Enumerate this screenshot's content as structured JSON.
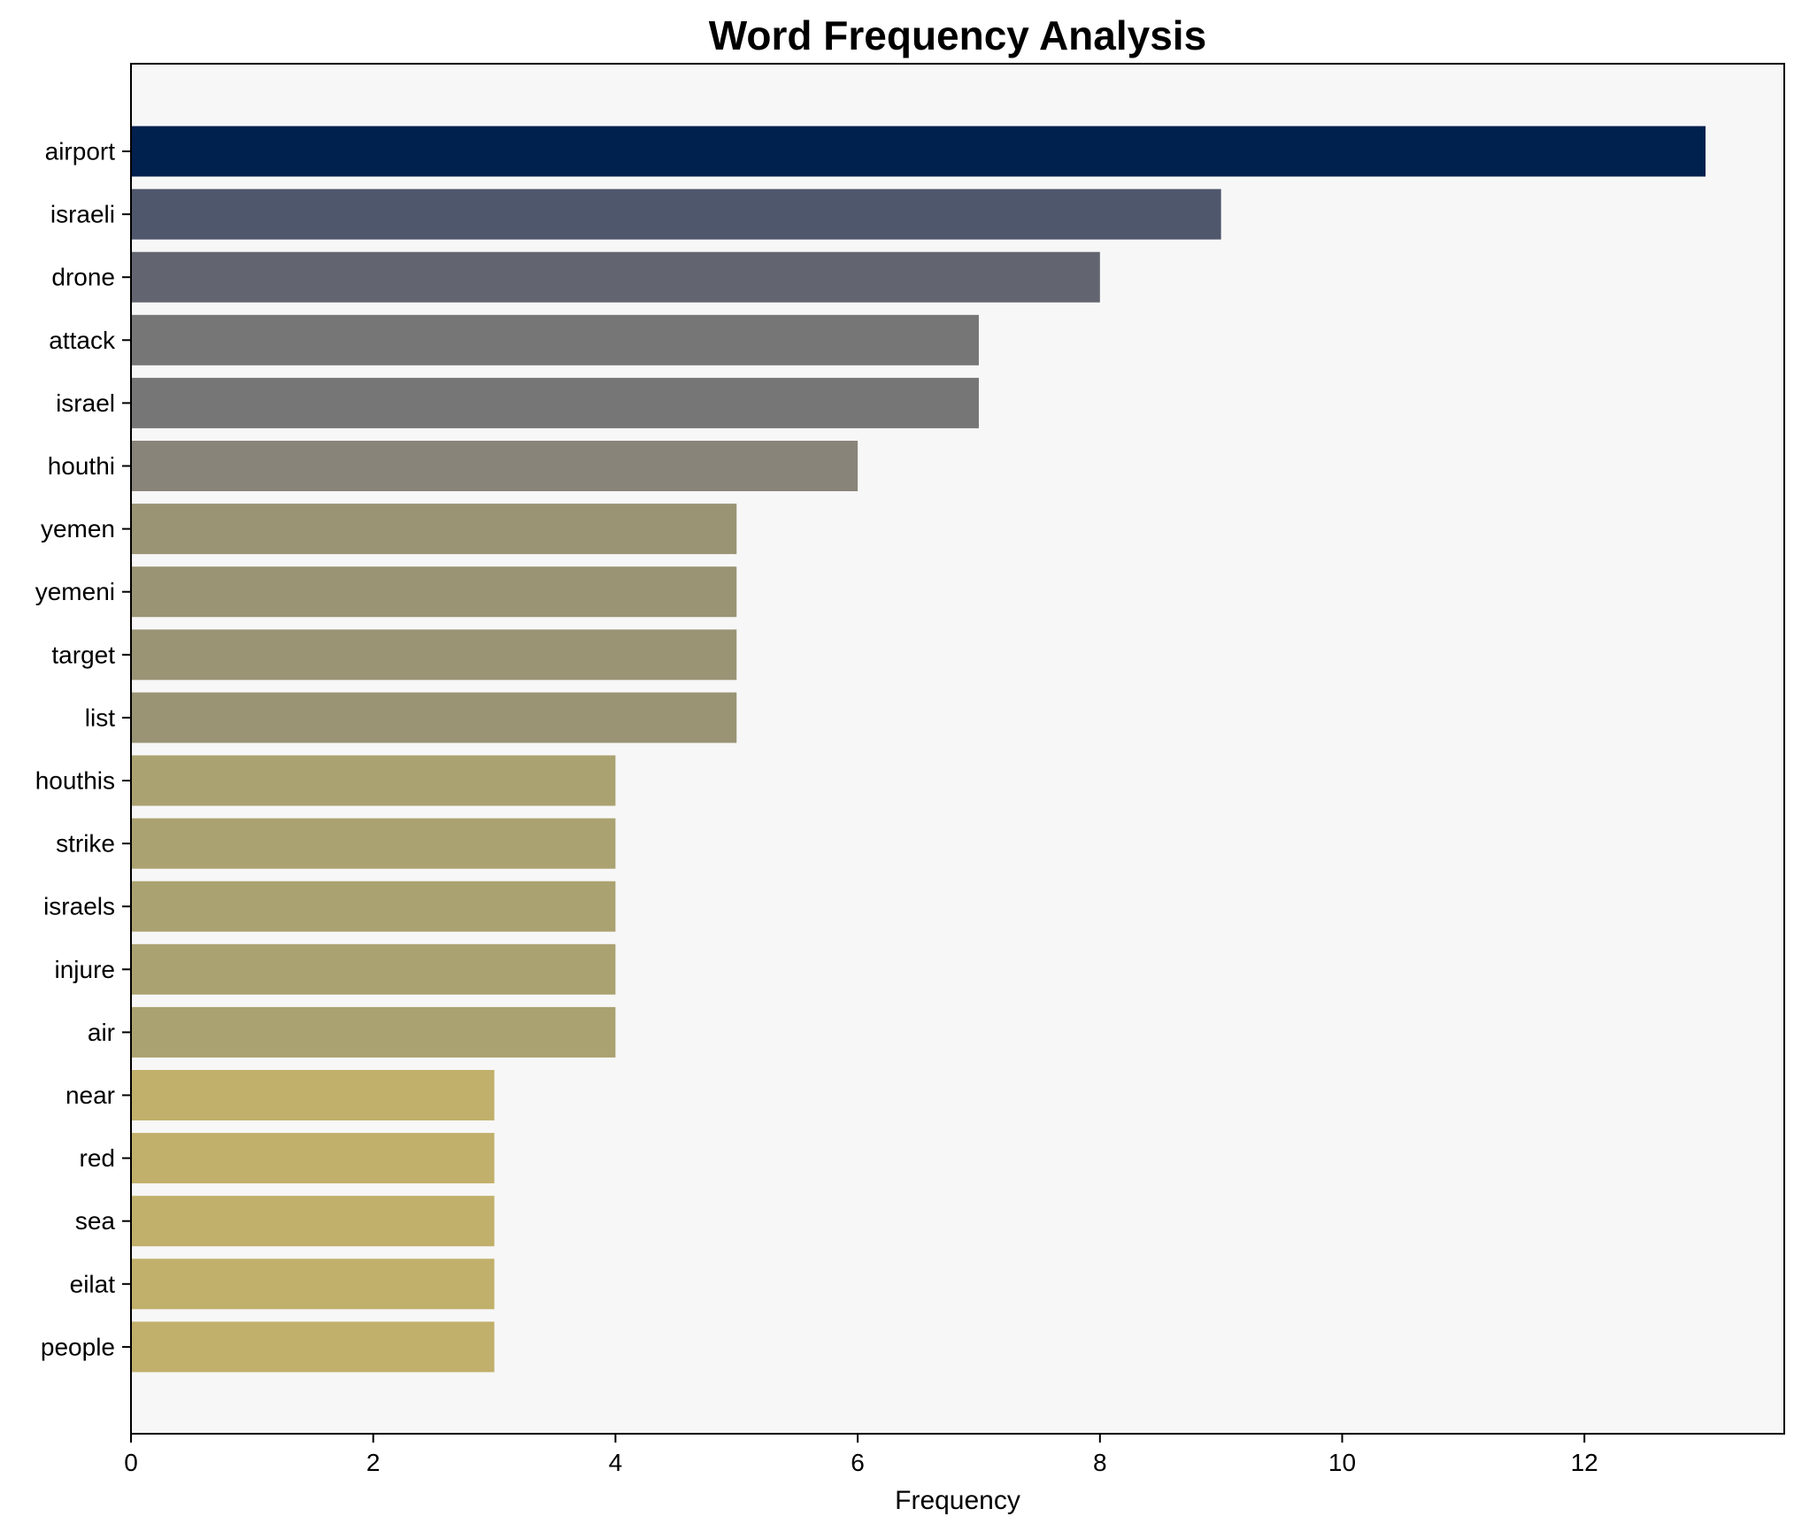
{
  "chart_data": {
    "type": "bar",
    "orientation": "horizontal",
    "title": "Word Frequency Analysis",
    "xlabel": "Frequency",
    "ylabel": "",
    "xlim": [
      0,
      13.65
    ],
    "xticks": [
      0,
      2,
      4,
      6,
      8,
      10,
      12
    ],
    "grid": false,
    "categories": [
      "airport",
      "israeli",
      "drone",
      "attack",
      "israel",
      "houthi",
      "yemen",
      "yemeni",
      "target",
      "list",
      "houthis",
      "strike",
      "israels",
      "injure",
      "air",
      "near",
      "red",
      "sea",
      "eilat",
      "people"
    ],
    "values": [
      13,
      9,
      8,
      7,
      7,
      6,
      5,
      5,
      5,
      5,
      4,
      4,
      4,
      4,
      4,
      3,
      3,
      3,
      3,
      3
    ],
    "colors": [
      "#00204d",
      "#4f576c",
      "#62646f",
      "#767676",
      "#767676",
      "#898479",
      "#9a9475",
      "#9a9475",
      "#9a9475",
      "#9a9475",
      "#aba271",
      "#aba271",
      "#aba271",
      "#aba271",
      "#aba271",
      "#c1b06b",
      "#c1b06b",
      "#c1b06b",
      "#c1b06b",
      "#c1b06b"
    ],
    "plot_background": "#f7f7f7"
  }
}
